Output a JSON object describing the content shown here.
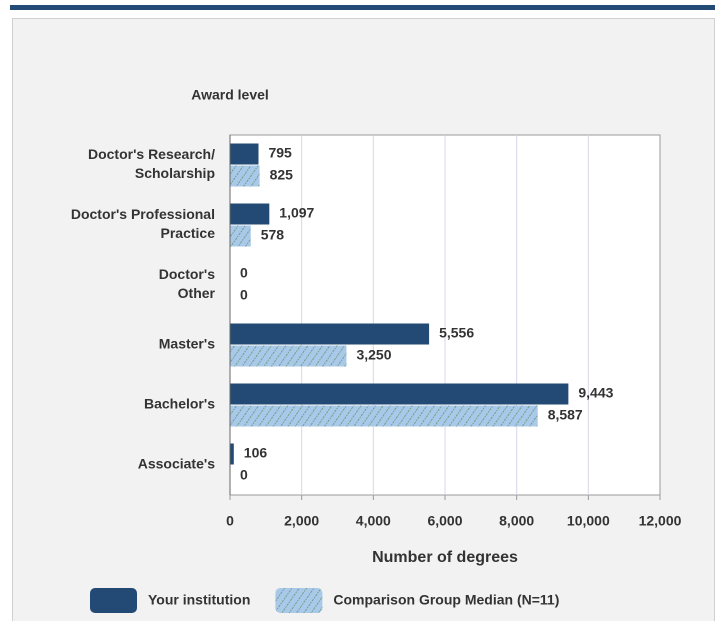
{
  "chart_data": {
    "type": "barh",
    "y_axis_title": "Award level",
    "x_axis_title": "Number of degrees",
    "categories": [
      [
        "Doctor's Research/",
        "Scholarship"
      ],
      [
        "Doctor's Professional",
        "Practice"
      ],
      [
        "Doctor's",
        "Other"
      ],
      [
        "Master's"
      ],
      [
        "Bachelor's"
      ],
      [
        "Associate's"
      ]
    ],
    "series": [
      {
        "name": "Your institution",
        "color": "#234a75",
        "values": [
          795,
          1097,
          0,
          5556,
          9443,
          106
        ],
        "value_labels": [
          "795",
          "1,097",
          "0",
          "5,556",
          "9,443",
          "106"
        ]
      },
      {
        "name": "Comparison Group Median (N=11)",
        "color": "#a9c8ea",
        "pattern": "hatch",
        "values": [
          825,
          578,
          0,
          3250,
          8587,
          0
        ],
        "value_labels": [
          "825",
          "578",
          "0",
          "3,250",
          "8,587",
          "0"
        ]
      }
    ],
    "xlim": [
      0,
      12000
    ],
    "xticks": [
      0,
      {
        "value": 2000,
        "label": "2,000"
      },
      {
        "value": 4000,
        "label": "4,000"
      },
      {
        "value": 6000,
        "label": "6,000"
      },
      {
        "value": 8000,
        "label": "8,000"
      },
      {
        "value": 10000,
        "label": "10,000"
      },
      {
        "value": 12000,
        "label": "12,000"
      }
    ],
    "grid": true,
    "legend": "bottom"
  }
}
